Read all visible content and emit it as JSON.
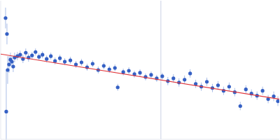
{
  "chart_data": {
    "type": "scatter",
    "x": [
      7,
      8,
      9,
      10,
      12,
      14,
      16,
      18,
      20,
      24,
      28,
      32,
      36,
      40,
      45,
      50,
      55,
      60,
      66,
      72,
      78,
      85,
      92,
      100,
      108,
      116,
      124,
      132,
      140,
      148,
      156,
      164,
      168,
      176,
      184,
      192,
      200,
      208,
      216,
      224,
      232,
      240,
      248,
      256,
      264,
      272,
      280,
      288,
      296,
      304,
      312,
      320,
      328,
      336,
      344,
      352,
      360,
      368,
      376,
      384,
      392,
      398
    ],
    "values": [
      175,
      40,
      152,
      100,
      108,
      115,
      112,
      105,
      118,
      120,
      122,
      116,
      125,
      118,
      121,
      126,
      119,
      122,
      116,
      120,
      113,
      117,
      112,
      114,
      108,
      111,
      104,
      109,
      100,
      106,
      101,
      103,
      75,
      97,
      99,
      94,
      96,
      90,
      93,
      88,
      91,
      84,
      88,
      82,
      86,
      95,
      80,
      76,
      83,
      74,
      78,
      70,
      76,
      68,
      48,
      72,
      66,
      63,
      70,
      58,
      62,
      55
    ],
    "errors": [
      15,
      60,
      15,
      20,
      12,
      10,
      8,
      8,
      7,
      6,
      6,
      6,
      6,
      6,
      5,
      5,
      5,
      5,
      5,
      5,
      5,
      5,
      5,
      5,
      5,
      5,
      5,
      5,
      5,
      5,
      5,
      5,
      5,
      5,
      5,
      5,
      5,
      5,
      5,
      5,
      5,
      6,
      6,
      6,
      6,
      6,
      6,
      6,
      6,
      6,
      6,
      6,
      6,
      6,
      6,
      6,
      6,
      6,
      6,
      6,
      7,
      7
    ],
    "color": "#3560c4",
    "marker": "circle",
    "fit": {
      "x": [
        0,
        400
      ],
      "values": [
        123,
        58
      ],
      "color": "#e0353a",
      "line_style": "solid"
    },
    "vline": 230,
    "xlim": [
      0,
      400
    ],
    "ylim": [
      0,
      200
    ],
    "grid": false,
    "tick_labels": false
  }
}
